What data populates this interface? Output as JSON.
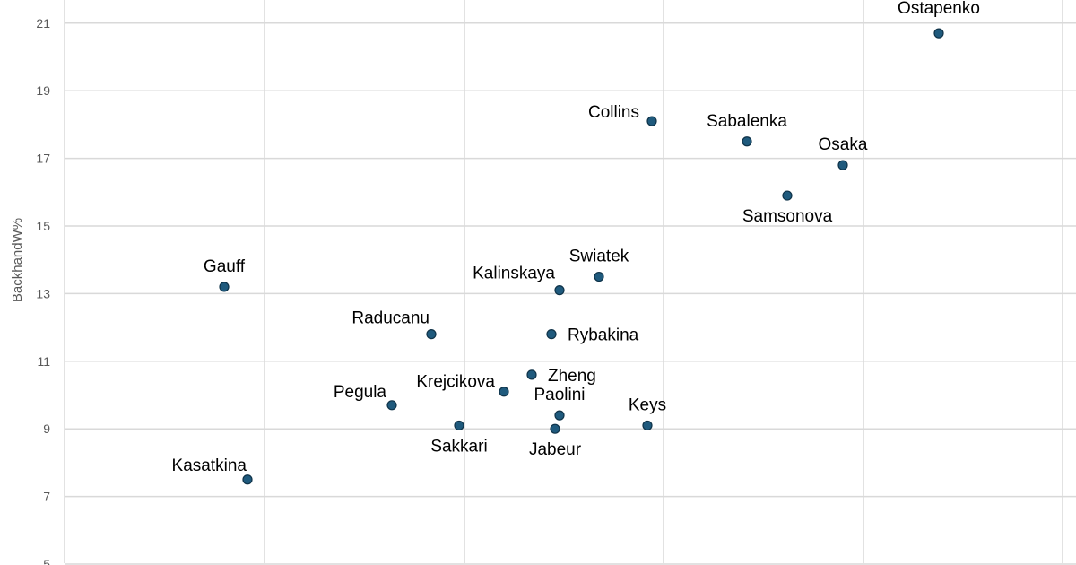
{
  "chart_data": {
    "type": "scatter",
    "ylabel": "BackhandW%",
    "ylim": [
      5,
      22
    ],
    "yticks": [
      5,
      7,
      9,
      11,
      13,
      15,
      17,
      19,
      21
    ],
    "grid": true,
    "colors": {
      "point": "#1f5a7d",
      "grid": "#d9d9d9"
    },
    "points": [
      {
        "label": "Ostapenko",
        "y": 20.7,
        "label_pos": "above"
      },
      {
        "label": "Collins",
        "y": 18.1,
        "label_pos": "upper-left"
      },
      {
        "label": "Sabalenka",
        "y": 17.5,
        "label_pos": "above"
      },
      {
        "label": "Osaka",
        "y": 16.8,
        "label_pos": "above"
      },
      {
        "label": "Samsonova",
        "y": 15.9,
        "label_pos": "below"
      },
      {
        "label": "Swiatek",
        "y": 13.5,
        "label_pos": "above"
      },
      {
        "label": "Kalinskaya",
        "y": 13.1,
        "label_pos": "upper-left"
      },
      {
        "label": "Gauff",
        "y": 13.2,
        "label_pos": "above"
      },
      {
        "label": "Raducanu",
        "y": 11.8,
        "label_pos": "upper-left"
      },
      {
        "label": "Rybakina",
        "y": 11.8,
        "label_pos": "right"
      },
      {
        "label": "Zheng",
        "y": 10.6,
        "label_pos": "right"
      },
      {
        "label": "Krejcikova",
        "y": 10.1,
        "label_pos": "upper-left"
      },
      {
        "label": "Pegula",
        "y": 9.7,
        "label_pos": "upper-left"
      },
      {
        "label": "Paolini",
        "y": 9.4,
        "label_pos": "above"
      },
      {
        "label": "Keys",
        "y": 9.1,
        "label_pos": "above"
      },
      {
        "label": "Sakkari",
        "y": 9.1,
        "label_pos": "below"
      },
      {
        "label": "Jabeur",
        "y": 9.0,
        "label_pos": "below"
      },
      {
        "label": "Kasatkina",
        "y": 7.5,
        "label_pos": "upper-left"
      }
    ]
  }
}
